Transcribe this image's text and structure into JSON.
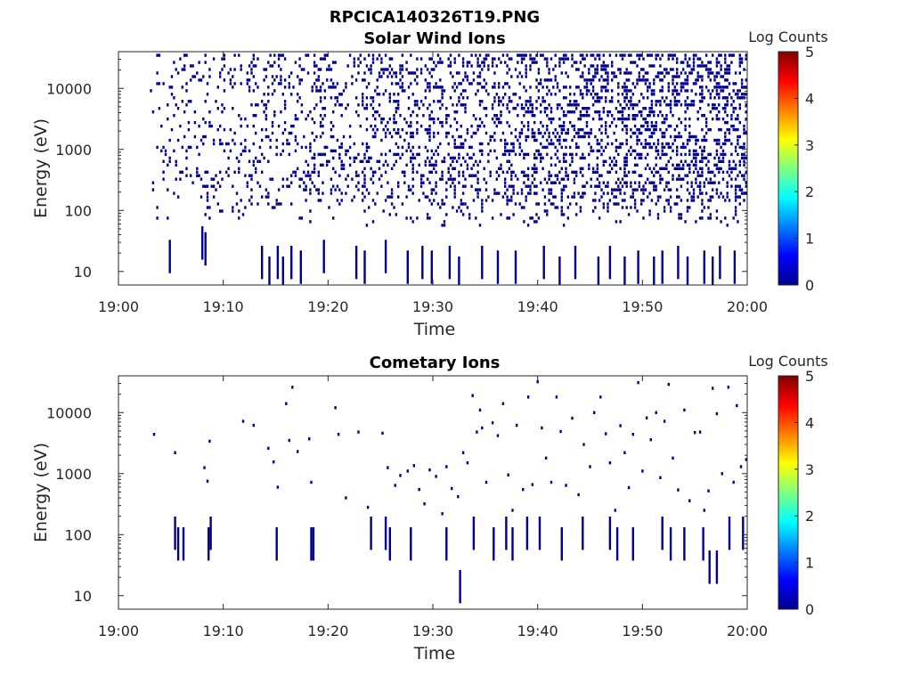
{
  "figure": {
    "title": "RPCICA140326T19.PNG"
  },
  "colormap": {
    "name": "jet",
    "label": "Log Counts",
    "range": [
      0,
      5
    ],
    "ticks": [
      "0",
      "1",
      "2",
      "3",
      "4",
      "5"
    ]
  },
  "chart_data": [
    {
      "type": "heatmap",
      "title": "Solar Wind Ions",
      "xlabel": "Time",
      "ylabel": "Energy (eV)",
      "x_scale": "time",
      "y_scale": "log",
      "xlim": [
        "19:00",
        "20:00"
      ],
      "ylim": [
        6,
        40000
      ],
      "xticks": [
        "19:00",
        "19:10",
        "19:20",
        "19:30",
        "19:40",
        "19:50",
        "20:00"
      ],
      "yticks": [
        {
          "value": 10,
          "label": "10"
        },
        {
          "value": 100,
          "label": "100"
        },
        {
          "value": 1000,
          "label": "1000"
        },
        {
          "value": 10000,
          "label": "10000"
        }
      ],
      "cell_value_log_counts": 0,
      "cell_color": "#00008f",
      "density_profile": "sparse counts from 19:03, density increasing toward 20:00",
      "active_minutes": [
        3.0,
        20.0
      ],
      "low_energy_columns_minutes": [
        [
          4.8,
          15
        ],
        [
          7.9,
          25
        ],
        [
          8.2,
          20
        ],
        [
          13.6,
          12
        ],
        [
          14.3,
          8
        ],
        [
          15.1,
          12
        ],
        [
          15.6,
          8
        ],
        [
          16.4,
          12
        ],
        [
          17.3,
          10
        ],
        [
          19.5,
          15
        ],
        [
          22.6,
          12
        ],
        [
          23.4,
          10
        ],
        [
          25.4,
          15
        ],
        [
          27.5,
          10
        ],
        [
          28.9,
          12
        ],
        [
          29.8,
          10
        ],
        [
          31.5,
          12
        ],
        [
          32.4,
          8
        ],
        [
          34.6,
          12
        ],
        [
          36.1,
          10
        ],
        [
          37.8,
          10
        ],
        [
          40.5,
          12
        ],
        [
          42.0,
          8
        ],
        [
          43.5,
          12
        ],
        [
          45.7,
          8
        ],
        [
          46.8,
          12
        ],
        [
          48.2,
          8
        ],
        [
          49.5,
          10
        ],
        [
          51.0,
          8
        ],
        [
          51.8,
          10
        ],
        [
          53.3,
          12
        ],
        [
          54.2,
          8
        ],
        [
          55.8,
          10
        ],
        [
          56.6,
          8
        ],
        [
          57.3,
          12
        ],
        [
          58.7,
          10
        ]
      ]
    },
    {
      "type": "heatmap",
      "title": "Cometary Ions",
      "xlabel": "Time",
      "ylabel": "Energy (eV)",
      "x_scale": "time",
      "y_scale": "log",
      "xlim": [
        "19:00",
        "20:00"
      ],
      "ylim": [
        6,
        40000
      ],
      "xticks": [
        "19:00",
        "19:10",
        "19:20",
        "19:30",
        "19:40",
        "19:50",
        "20:00"
      ],
      "yticks": [
        {
          "value": 10,
          "label": "10"
        },
        {
          "value": 100,
          "label": "100"
        },
        {
          "value": 1000,
          "label": "1000"
        },
        {
          "value": 10000,
          "label": "10000"
        }
      ],
      "cell_value_log_counts": 0,
      "cell_color": "#00008f",
      "points": [
        [
          3.3,
          4400
        ],
        [
          5.3,
          2200
        ],
        [
          8.1,
          1250
        ],
        [
          8.4,
          750
        ],
        [
          8.6,
          3400
        ],
        [
          11.8,
          7200
        ],
        [
          12.8,
          6200
        ],
        [
          14.2,
          2600
        ],
        [
          14.7,
          1550
        ],
        [
          15.1,
          600
        ],
        [
          15.9,
          14000
        ],
        [
          16.2,
          3500
        ],
        [
          16.5,
          26000
        ],
        [
          17.0,
          2300
        ],
        [
          18.1,
          3700
        ],
        [
          18.3,
          720
        ],
        [
          20.6,
          12000
        ],
        [
          20.9,
          4400
        ],
        [
          21.6,
          400
        ],
        [
          22.8,
          4800
        ],
        [
          23.7,
          280
        ],
        [
          25.1,
          4600
        ],
        [
          25.6,
          1250
        ],
        [
          26.3,
          640
        ],
        [
          26.8,
          930
        ],
        [
          27.5,
          1100
        ],
        [
          28.1,
          1350
        ],
        [
          28.6,
          550
        ],
        [
          29.1,
          320
        ],
        [
          29.6,
          1150
        ],
        [
          30.2,
          900
        ],
        [
          30.8,
          220
        ],
        [
          31.2,
          1300
        ],
        [
          31.7,
          570
        ],
        [
          32.3,
          420
        ],
        [
          32.8,
          2200
        ],
        [
          33.2,
          1500
        ],
        [
          33.7,
          19000
        ],
        [
          34.1,
          4800
        ],
        [
          34.4,
          11000
        ],
        [
          34.6,
          5600
        ],
        [
          35.0,
          720
        ],
        [
          35.6,
          6800
        ],
        [
          36.1,
          4200
        ],
        [
          36.6,
          14000
        ],
        [
          37.1,
          950
        ],
        [
          37.5,
          250
        ],
        [
          37.9,
          6200
        ],
        [
          38.5,
          550
        ],
        [
          39.0,
          18000
        ],
        [
          39.4,
          660
        ],
        [
          39.9,
          32000
        ],
        [
          40.3,
          5600
        ],
        [
          40.7,
          1800
        ],
        [
          41.2,
          720
        ],
        [
          41.7,
          18000
        ],
        [
          42.1,
          4900
        ],
        [
          42.6,
          640
        ],
        [
          43.2,
          8100
        ],
        [
          43.8,
          450
        ],
        [
          44.3,
          3000
        ],
        [
          44.9,
          1300
        ],
        [
          45.3,
          10000
        ],
        [
          45.9,
          18000
        ],
        [
          46.4,
          4500
        ],
        [
          46.8,
          1500
        ],
        [
          47.3,
          250
        ],
        [
          47.8,
          6100
        ],
        [
          48.2,
          2200
        ],
        [
          48.6,
          590
        ],
        [
          49.0,
          4400
        ],
        [
          49.5,
          31000
        ],
        [
          49.9,
          1100
        ],
        [
          50.3,
          8200
        ],
        [
          50.7,
          3600
        ],
        [
          51.2,
          10000
        ],
        [
          51.6,
          860
        ],
        [
          52.0,
          7200
        ],
        [
          52.4,
          29000
        ],
        [
          52.8,
          1800
        ],
        [
          53.3,
          540
        ],
        [
          53.9,
          11000
        ],
        [
          54.4,
          360
        ],
        [
          54.9,
          4700
        ],
        [
          55.4,
          4800
        ],
        [
          55.8,
          250
        ],
        [
          56.2,
          520
        ],
        [
          56.6,
          25000
        ],
        [
          57.0,
          9600
        ],
        [
          57.5,
          1000
        ],
        [
          58.1,
          26000
        ],
        [
          58.6,
          720
        ],
        [
          58.9,
          13000
        ],
        [
          59.3,
          1300
        ],
        [
          59.8,
          1700
        ]
      ],
      "low_energy_columns_minutes": [
        [
          5.3,
          90
        ],
        [
          5.6,
          60
        ],
        [
          6.1,
          60
        ],
        [
          8.5,
          60
        ],
        [
          8.7,
          90
        ],
        [
          15.0,
          60
        ],
        [
          18.3,
          60
        ],
        [
          18.5,
          60
        ],
        [
          24.0,
          90
        ],
        [
          25.4,
          90
        ],
        [
          25.8,
          60
        ],
        [
          27.8,
          60
        ],
        [
          31.2,
          60
        ],
        [
          32.5,
          12
        ],
        [
          33.8,
          90
        ],
        [
          35.7,
          60
        ],
        [
          36.9,
          90
        ],
        [
          37.5,
          60
        ],
        [
          38.9,
          90
        ],
        [
          40.1,
          90
        ],
        [
          42.2,
          60
        ],
        [
          44.2,
          90
        ],
        [
          46.8,
          90
        ],
        [
          47.5,
          60
        ],
        [
          49.0,
          60
        ],
        [
          51.8,
          90
        ],
        [
          52.6,
          60
        ],
        [
          53.9,
          60
        ],
        [
          55.7,
          60
        ],
        [
          56.3,
          25
        ],
        [
          57.0,
          25
        ],
        [
          58.2,
          90
        ],
        [
          59.5,
          90
        ]
      ]
    }
  ]
}
